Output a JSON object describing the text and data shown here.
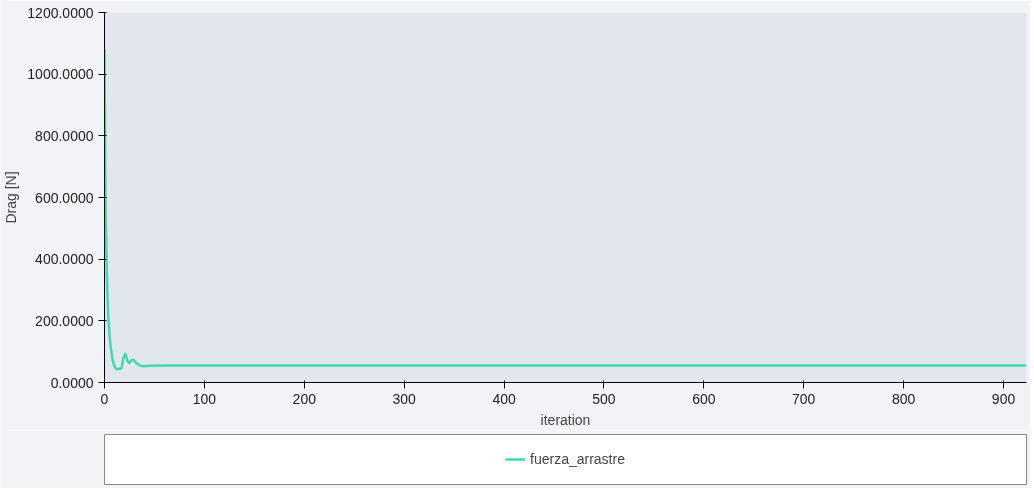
{
  "chart_data": {
    "type": "line",
    "xlabel": "iteration",
    "ylabel": "Drag [N]",
    "xlim": [
      0,
      923
    ],
    "ylim": [
      0,
      1200
    ],
    "xticks": [
      0,
      100,
      200,
      300,
      400,
      500,
      600,
      700,
      800,
      900
    ],
    "yticks": [
      {
        "value": 0,
        "label": "0.0000"
      },
      {
        "value": 200,
        "label": "200.0000"
      },
      {
        "value": 400,
        "label": "400.0000"
      },
      {
        "value": 600,
        "label": "600.0000"
      },
      {
        "value": 800,
        "label": "800.0000"
      },
      {
        "value": 1000,
        "label": "1000.0000"
      },
      {
        "value": 1200,
        "label": "1200.0000"
      }
    ],
    "grid": false,
    "legend": "bottom",
    "series": [
      {
        "name": "fuerza_arrastre",
        "color": "#40d9b0",
        "x": [
          0,
          1,
          2,
          3,
          4,
          6,
          8,
          10,
          12,
          15,
          17,
          19,
          21,
          23,
          25,
          27,
          29,
          32,
          35,
          38,
          45,
          60,
          100,
          200,
          400,
          600,
          800,
          923
        ],
        "values": [
          1080,
          600,
          400,
          280,
          200,
          120,
          75,
          52,
          44,
          44,
          46,
          80,
          93,
          70,
          63,
          72,
          74,
          62,
          56,
          53,
          54,
          55,
          55,
          55,
          55,
          55,
          55,
          55
        ]
      }
    ]
  }
}
